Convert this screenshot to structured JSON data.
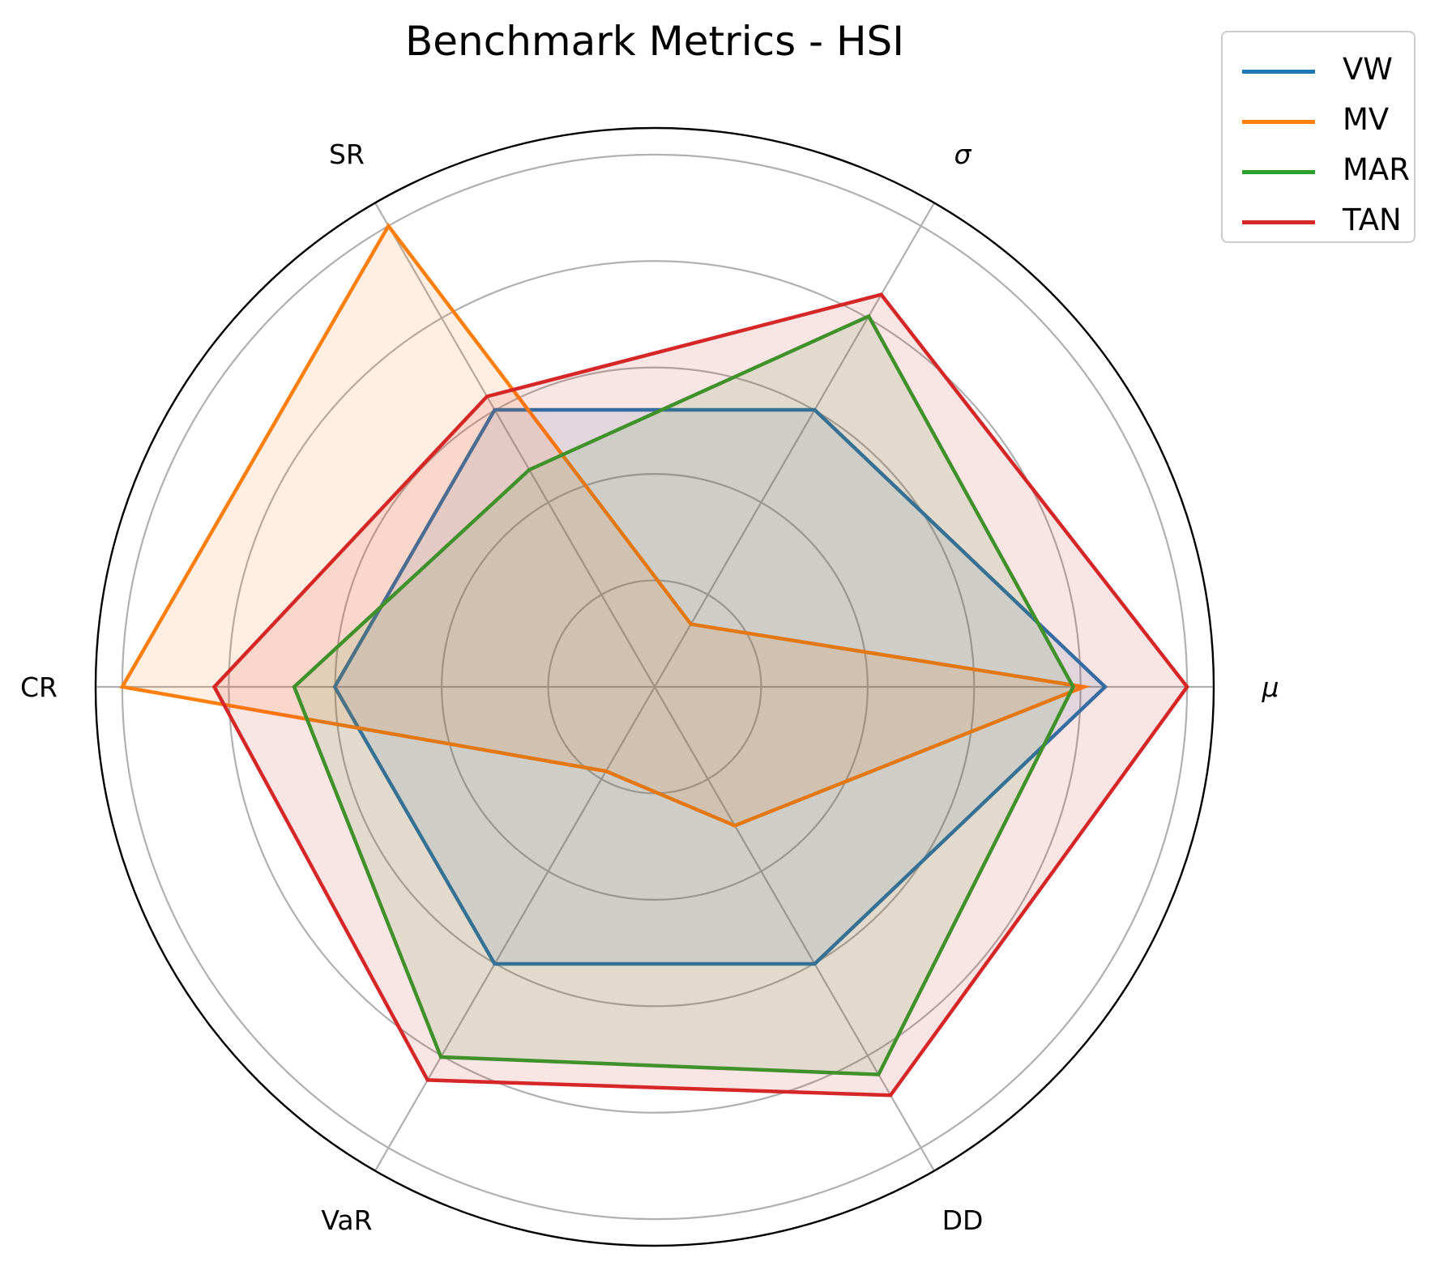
{
  "chart_data": {
    "type": "radar",
    "title": "Benchmark Metrics - HSI",
    "axes": [
      "μ",
      "σ",
      "SR",
      "CR",
      "VaR",
      "DD"
    ],
    "rlim": [
      0,
      1.05
    ],
    "rgrid": [
      0.2,
      0.4,
      0.6,
      0.8,
      1.0
    ],
    "grid": true,
    "legend_position": "top-right",
    "series": [
      {
        "name": "VW",
        "color": "#1f77b4",
        "values": [
          0.846,
          0.601,
          0.601,
          0.601,
          0.601,
          0.601
        ]
      },
      {
        "name": "MV",
        "color": "#ff7f0e",
        "values": [
          0.806,
          0.136,
          1.0,
          1.0,
          0.183,
          0.301
        ]
      },
      {
        "name": "MAR",
        "color": "#2ca02c",
        "values": [
          0.786,
          0.804,
          0.471,
          0.677,
          0.803,
          0.841
        ]
      },
      {
        "name": "TAN",
        "color": "#d62728",
        "values": [
          1.0,
          0.851,
          0.63,
          0.827,
          0.853,
          0.886
        ]
      }
    ]
  }
}
